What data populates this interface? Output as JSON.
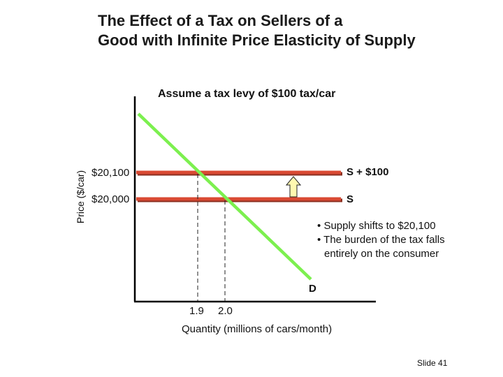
{
  "title": {
    "line1": "The Effect of a Tax on Sellers of a",
    "line2": "Good with Infinite Price Elasticity of Supply"
  },
  "subtitle": "Assume a tax levy of $100 tax/car",
  "chart_data": {
    "type": "line",
    "ylabel": "Price ($/car)",
    "xlabel": "Quantity (millions of cars/month)",
    "y_ticks": [
      "$20,100",
      "$20,000"
    ],
    "x_ticks": [
      "1.9",
      "2.0"
    ],
    "series": [
      {
        "name": "S + $100",
        "kind": "supply_after_tax",
        "price": 20100,
        "color": "#c0392b"
      },
      {
        "name": "S",
        "kind": "supply",
        "price": 20000,
        "color": "#c0392b"
      },
      {
        "name": "D",
        "kind": "demand",
        "color": "#7cf04f",
        "passes_through": [
          [
            1.9,
            20100
          ],
          [
            2.0,
            20000
          ]
        ]
      }
    ],
    "equilibria": [
      {
        "quantity": 1.9,
        "price": 20100
      },
      {
        "quantity": 2.0,
        "price": 20000
      }
    ]
  },
  "notes": [
    "Supply shifts to $20,100",
    "The burden of the tax falls",
    "entirely on the consumer"
  ],
  "bullet": "•",
  "slide_number": "Slide 41"
}
